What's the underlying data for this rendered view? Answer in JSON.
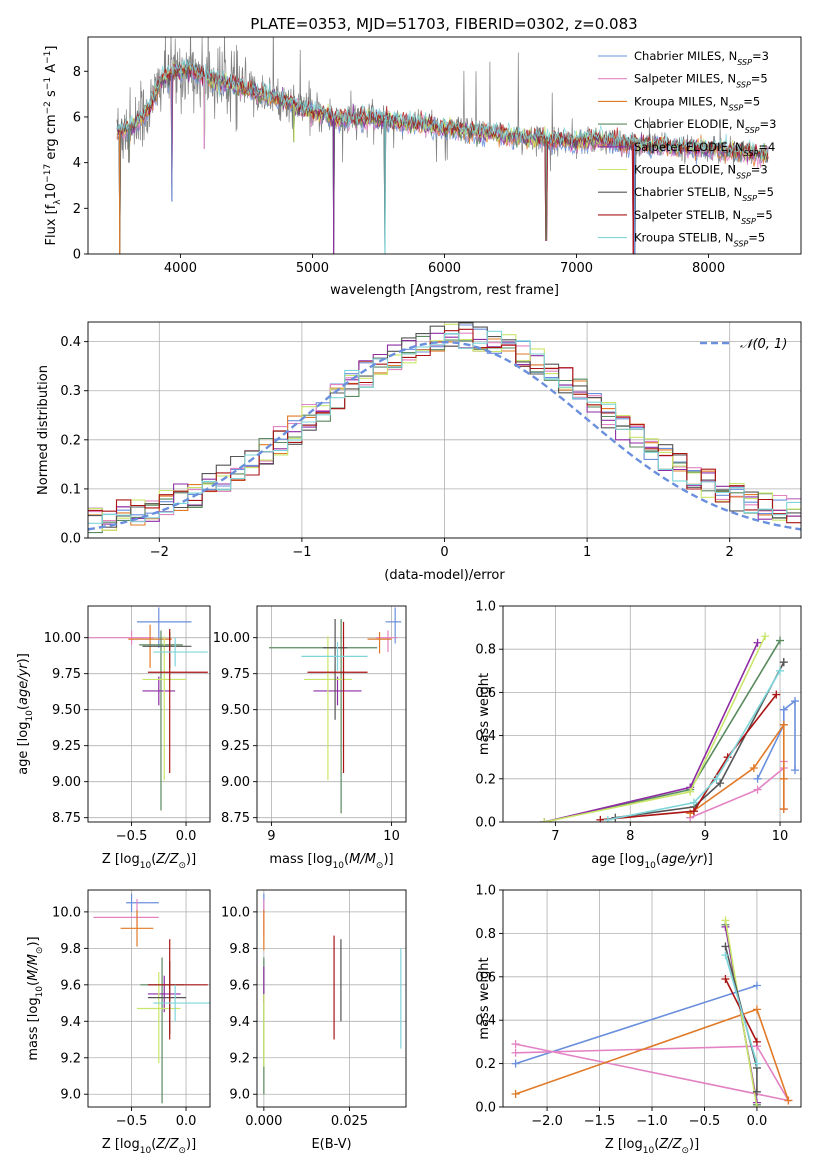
{
  "title": "PLATE=0353, MJD=51703, FIBERID=0302, z=0.083",
  "colors": {
    "Chabrier MILES": "#6a8fdc",
    "Salpeter MILES": "#e383c4",
    "Kroupa MILES": "#e07a28",
    "Chabrier ELODIE": "#5a8a5f",
    "Salpeter ELODIE": "#8e2ca4",
    "Kroupa ELODIE": "#c9e66a",
    "Chabrier STELIB": "#555555",
    "Salpeter STELIB": "#aa1414",
    "Kroupa STELIB": "#7fd6da",
    "data": "#808080"
  },
  "chart_data": [
    {
      "id": "spectrum",
      "type": "line",
      "title": "PLATE=0353, MJD=51703, FIBERID=0302, z=0.083",
      "xlabel": "wavelength [Angstrom, rest frame]",
      "ylabel": "Flux [f_λ 10^-17 erg cm^-2 s^-1 A^-1]",
      "xlim": [
        3300,
        8700
      ],
      "ylim": [
        0,
        9.5
      ],
      "xticks": [
        4000,
        5000,
        6000,
        7000,
        8000
      ],
      "yticks": [
        0,
        2,
        4,
        6,
        8
      ],
      "legend": "top-right",
      "series": [
        {
          "name": "Chabrier MILES",
          "nssp": "3"
        },
        {
          "name": "Salpeter MILES",
          "nssp": "5"
        },
        {
          "name": "Kroupa MILES",
          "nssp": "5"
        },
        {
          "name": "Chabrier ELODIE",
          "nssp": "3"
        },
        {
          "name": "Salpeter ELODIE",
          "nssp": "4"
        },
        {
          "name": "Kroupa ELODIE",
          "nssp": "3"
        },
        {
          "name": "Chabrier STELIB",
          "nssp": "5"
        },
        {
          "name": "Salpeter STELIB",
          "nssp": "5"
        },
        {
          "name": "Kroupa STELIB",
          "nssp": "5"
        }
      ],
      "continuum": [
        [
          3520,
          5.3
        ],
        [
          3650,
          5.6
        ],
        [
          3780,
          6.5
        ],
        [
          3850,
          7.6
        ],
        [
          3950,
          7.9
        ],
        [
          4050,
          8.1
        ],
        [
          4200,
          7.7
        ],
        [
          4400,
          7.4
        ],
        [
          4600,
          7.0
        ],
        [
          4800,
          6.7
        ],
        [
          5000,
          6.2
        ],
        [
          5200,
          5.9
        ],
        [
          5500,
          5.9
        ],
        [
          5800,
          5.7
        ],
        [
          6000,
          5.5
        ],
        [
          6300,
          5.3
        ],
        [
          6600,
          5.1
        ],
        [
          6800,
          5.0
        ],
        [
          7000,
          4.9
        ],
        [
          7200,
          5.0
        ],
        [
          7400,
          4.8
        ],
        [
          7700,
          4.7
        ],
        [
          8000,
          4.6
        ],
        [
          8200,
          4.5
        ],
        [
          8450,
          4.3
        ]
      ],
      "absorption_features": [
        [
          3935,
          2.3
        ],
        [
          5160,
          0.0
        ],
        [
          5550,
          0.0
        ],
        [
          6770,
          0.6
        ],
        [
          7430,
          0.0
        ],
        [
          3540,
          0.0
        ],
        [
          3610,
          4.0
        ],
        [
          4180,
          4.6
        ],
        [
          4860,
          4.9
        ],
        [
          7440,
          0.0
        ]
      ]
    },
    {
      "id": "residuals",
      "type": "histogram",
      "xlabel": "(data-model)/error",
      "ylabel": "Normed distribution",
      "xlim": [
        -2.5,
        2.5
      ],
      "ylim": [
        0,
        0.44
      ],
      "xticks": [
        -2,
        -1,
        0,
        1,
        2
      ],
      "yticks": [
        0.0,
        0.1,
        0.2,
        0.3,
        0.4
      ],
      "grid": true,
      "legend": "top-right",
      "reference": {
        "name": "𝒩(0, 1)",
        "mean": 0,
        "sigma": 1
      },
      "bin_width": 0.1
    },
    {
      "id": "age-vs-Z",
      "type": "scatter",
      "xlabel": "Z [log10(Z/Z⊙)]",
      "ylabel": "age [log10(age/yr)]",
      "xlim": [
        -0.9,
        0.22
      ],
      "ylim": [
        8.72,
        10.22
      ],
      "xticks": [
        -0.5,
        0.0
      ],
      "yticks": [
        8.75,
        9.0,
        9.25,
        9.5,
        9.75,
        10.0
      ],
      "grid": true,
      "points": [
        {
          "model": "Chabrier MILES",
          "x": -0.25,
          "y": 10.11,
          "xerr": [
            0.2,
            0.3
          ],
          "yerr": [
            0.18,
            0.1
          ]
        },
        {
          "model": "Salpeter MILES",
          "x": -0.5,
          "y": 10.0,
          "xerr": [
            0.4,
            0.2
          ],
          "yerr": [
            0.05,
            0.05
          ]
        },
        {
          "model": "Kroupa MILES",
          "x": -0.33,
          "y": 9.99,
          "xerr": [
            0.2,
            0.2
          ],
          "yerr": [
            0.2,
            0.1
          ]
        },
        {
          "model": "Chabrier ELODIE",
          "x": -0.23,
          "y": 9.95,
          "xerr": [
            0.2,
            0.2
          ],
          "yerr": [
            1.15,
            0.1
          ]
        },
        {
          "model": "Salpeter ELODIE",
          "x": -0.25,
          "y": 9.63,
          "xerr": [
            0.15,
            0.15
          ],
          "yerr": [
            0.1,
            0.1
          ]
        },
        {
          "model": "Kroupa ELODIE",
          "x": -0.2,
          "y": 9.71,
          "xerr": [
            0.2,
            0.2
          ],
          "yerr": [
            0.7,
            0.3
          ]
        },
        {
          "model": "Chabrier STELIB",
          "x": -0.15,
          "y": 9.94,
          "xerr": [
            0.25,
            0.2
          ],
          "yerr": [
            0.15,
            0.1
          ]
        },
        {
          "model": "Salpeter STELIB",
          "x": -0.15,
          "y": 9.76,
          "xerr": [
            0.2,
            0.35
          ],
          "yerr": [
            0.7,
            0.3
          ]
        },
        {
          "model": "Kroupa STELIB",
          "x": -0.1,
          "y": 9.9,
          "xerr": [
            0.2,
            0.3
          ],
          "yerr": [
            0.1,
            0.1
          ]
        }
      ]
    },
    {
      "id": "age-vs-mass",
      "type": "scatter",
      "xlabel": "mass [log10(M/M⊙)]",
      "ylabel": "",
      "xlim": [
        8.88,
        10.12
      ],
      "ylim": [
        8.72,
        10.22
      ],
      "xticks": [
        9,
        10
      ],
      "yticks": [
        8.75,
        9.0,
        9.25,
        9.5,
        9.75,
        10.0
      ],
      "grid": true,
      "points": [
        {
          "model": "Chabrier MILES",
          "x": 10.03,
          "y": 10.11,
          "xerr": [
            0.08,
            0.05
          ],
          "yerr": [
            0.15,
            0.1
          ]
        },
        {
          "model": "Salpeter MILES",
          "x": 9.97,
          "y": 10.0,
          "xerr": [
            0.1,
            0.08
          ],
          "yerr": [
            0.1,
            0.05
          ]
        },
        {
          "model": "Kroupa MILES",
          "x": 9.9,
          "y": 9.99,
          "xerr": [
            0.1,
            0.1
          ],
          "yerr": [
            0.1,
            0.05
          ]
        },
        {
          "model": "Chabrier ELODIE",
          "x": 9.58,
          "y": 9.93,
          "xerr": [
            0.6,
            0.3
          ],
          "yerr": [
            1.15,
            0.2
          ]
        },
        {
          "model": "Salpeter ELODIE",
          "x": 9.55,
          "y": 9.63,
          "xerr": [
            0.2,
            0.2
          ],
          "yerr": [
            0.1,
            0.1
          ]
        },
        {
          "model": "Kroupa ELODIE",
          "x": 9.47,
          "y": 9.71,
          "xerr": [
            0.2,
            0.2
          ],
          "yerr": [
            0.7,
            0.3
          ]
        },
        {
          "model": "Chabrier STELIB",
          "x": 9.53,
          "y": 9.93,
          "xerr": [
            0.1,
            0.1
          ],
          "yerr": [
            0.5,
            0.2
          ]
        },
        {
          "model": "Salpeter STELIB",
          "x": 9.6,
          "y": 9.76,
          "xerr": [
            0.3,
            0.2
          ],
          "yerr": [
            0.7,
            0.35
          ]
        },
        {
          "model": "Kroupa STELIB",
          "x": 9.55,
          "y": 9.87,
          "xerr": [
            0.3,
            0.25
          ],
          "yerr": [
            0.1,
            0.1
          ]
        }
      ]
    },
    {
      "id": "weight-vs-age",
      "type": "line",
      "xlabel": "age [log10(age/yr)]",
      "ylabel": "mass weight",
      "xlim": [
        6.3,
        10.28
      ],
      "ylim": [
        0,
        1.0
      ],
      "xticks": [
        7,
        8,
        9,
        10
      ],
      "yticks": [
        0.0,
        0.2,
        0.4,
        0.6,
        0.8,
        1.0
      ],
      "grid": true,
      "series": [
        {
          "name": "Chabrier MILES",
          "x": [
            9.7,
            10.05,
            10.05,
            10.2,
            10.2
          ],
          "y": [
            0.2,
            0.45,
            0.52,
            0.56,
            0.24
          ]
        },
        {
          "name": "Salpeter MILES",
          "x": [
            8.8,
            9.7,
            10.05,
            10.05,
            10.05
          ],
          "y": [
            0.02,
            0.15,
            0.25,
            0.28,
            0.06
          ]
        },
        {
          "name": "Kroupa MILES",
          "x": [
            8.8,
            9.65,
            10.05,
            10.05,
            10.05
          ],
          "y": [
            0.04,
            0.25,
            0.45,
            0.2,
            0.06
          ]
        },
        {
          "name": "Chabrier ELODIE",
          "x": [
            6.85,
            8.8,
            10.0
          ],
          "y": [
            0.0,
            0.15,
            0.84
          ]
        },
        {
          "name": "Salpeter ELODIE",
          "x": [
            6.85,
            8.8,
            9.7
          ],
          "y": [
            0.0,
            0.16,
            0.83
          ]
        },
        {
          "name": "Kroupa ELODIE",
          "x": [
            6.85,
            8.8,
            9.8
          ],
          "y": [
            0.0,
            0.14,
            0.86
          ]
        },
        {
          "name": "Chabrier STELIB",
          "x": [
            7.8,
            8.85,
            9.2,
            10.05,
            10.05
          ],
          "y": [
            0.02,
            0.07,
            0.18,
            0.74,
            0.74
          ]
        },
        {
          "name": "Salpeter STELIB",
          "x": [
            7.6,
            8.85,
            9.3,
            9.95
          ],
          "y": [
            0.01,
            0.05,
            0.3,
            0.59
          ]
        },
        {
          "name": "Kroupa STELIB",
          "x": [
            7.7,
            8.85,
            9.15,
            10.0
          ],
          "y": [
            0.01,
            0.09,
            0.2,
            0.7
          ]
        }
      ]
    },
    {
      "id": "mass-vs-Z",
      "type": "scatter",
      "xlabel": "Z [log10(Z/Z⊙)]",
      "ylabel": "mass [log10(M/M⊙)]",
      "xlim": [
        -0.9,
        0.22
      ],
      "ylim": [
        8.93,
        10.12
      ],
      "xticks": [
        -0.5,
        0.0
      ],
      "yticks": [
        9.0,
        9.2,
        9.4,
        9.6,
        9.8,
        10.0
      ],
      "grid": true,
      "points": [
        {
          "model": "Chabrier MILES",
          "x": -0.5,
          "y": 10.05,
          "xerr": [
            0.05,
            0.25
          ],
          "yerr": [
            0.05,
            0.05
          ]
        },
        {
          "model": "Salpeter MILES",
          "x": -0.45,
          "y": 9.97,
          "xerr": [
            0.4,
            0.2
          ],
          "yerr": [
            0.05,
            0.1
          ]
        },
        {
          "model": "Kroupa MILES",
          "x": -0.45,
          "y": 9.91,
          "xerr": [
            0.15,
            0.15
          ],
          "yerr": [
            0.1,
            0.1
          ]
        },
        {
          "model": "Chabrier ELODIE",
          "x": -0.22,
          "y": 9.6,
          "xerr": [
            0.2,
            0.2
          ],
          "yerr": [
            0.65,
            0.15
          ]
        },
        {
          "model": "Salpeter ELODIE",
          "x": -0.2,
          "y": 9.55,
          "xerr": [
            0.15,
            0.15
          ],
          "yerr": [
            0.1,
            0.1
          ]
        },
        {
          "model": "Kroupa ELODIE",
          "x": -0.25,
          "y": 9.47,
          "xerr": [
            0.2,
            0.2
          ],
          "yerr": [
            0.3,
            0.2
          ]
        },
        {
          "model": "Chabrier STELIB",
          "x": -0.15,
          "y": 9.53,
          "xerr": [
            0.2,
            0.15
          ],
          "yerr": [
            0.2,
            0.2
          ]
        },
        {
          "model": "Salpeter STELIB",
          "x": -0.15,
          "y": 9.6,
          "xerr": [
            0.2,
            0.35
          ],
          "yerr": [
            0.3,
            0.25
          ]
        },
        {
          "model": "Kroupa STELIB",
          "x": -0.1,
          "y": 9.5,
          "xerr": [
            0.2,
            0.35
          ],
          "yerr": [
            0.1,
            0.1
          ]
        }
      ]
    },
    {
      "id": "mass-vs-ebv",
      "type": "scatter",
      "xlabel": "E(B-V)",
      "ylabel": "",
      "xlim": [
        -0.002,
        0.0415
      ],
      "ylim": [
        8.93,
        10.12
      ],
      "xticks": [
        0.0,
        0.025
      ],
      "yticks": [
        9.0,
        9.2,
        9.4,
        9.6,
        9.8,
        10.0
      ],
      "grid": true,
      "points": [
        {
          "model": "Chabrier MILES",
          "x": 0.0,
          "y": 10.05,
          "yerr": [
            0.05,
            0.05
          ]
        },
        {
          "model": "Salpeter MILES",
          "x": 0.0,
          "y": 9.97,
          "yerr": [
            0.1,
            0.1
          ]
        },
        {
          "model": "Kroupa MILES",
          "x": 0.0,
          "y": 9.91,
          "yerr": [
            0.12,
            0.1
          ]
        },
        {
          "model": "Chabrier ELODIE",
          "x": 0.0,
          "y": 9.6,
          "yerr": [
            0.6,
            0.15
          ]
        },
        {
          "model": "Salpeter ELODIE",
          "x": 0.0,
          "y": 9.6,
          "yerr": [
            0.1,
            0.1
          ]
        },
        {
          "model": "Kroupa ELODIE",
          "x": 0.0,
          "y": 9.45,
          "yerr": [
            0.3,
            0.1
          ]
        },
        {
          "model": "Chabrier STELIB",
          "x": 0.0225,
          "y": 9.6,
          "yerr": [
            0.2,
            0.25
          ]
        },
        {
          "model": "Salpeter STELIB",
          "x": 0.0205,
          "y": 9.6,
          "yerr": [
            0.3,
            0.27
          ]
        },
        {
          "model": "Kroupa STELIB",
          "x": 0.04,
          "y": 9.5,
          "yerr": [
            0.25,
            0.3
          ]
        }
      ]
    },
    {
      "id": "weight-vs-Z",
      "type": "line",
      "xlabel": "Z [log10(Z/Z⊙)]",
      "ylabel": "mass weight",
      "xlim": [
        -2.42,
        0.42
      ],
      "ylim": [
        0,
        1.0
      ],
      "xticks": [
        -2.0,
        -1.5,
        -1.0,
        -0.5,
        0.0
      ],
      "yticks": [
        0.0,
        0.2,
        0.4,
        0.6,
        0.8,
        1.0
      ],
      "grid": true,
      "series": [
        {
          "name": "Chabrier MILES",
          "x": [
            -2.3,
            0.0
          ],
          "y": [
            0.2,
            0.56
          ]
        },
        {
          "name": "Salpeter MILES",
          "x": [
            -2.3,
            0.0,
            0.3,
            -2.3
          ],
          "y": [
            0.25,
            0.28,
            0.03,
            0.29
          ]
        },
        {
          "name": "Kroupa MILES",
          "x": [
            -2.3,
            0.0,
            0.3
          ],
          "y": [
            0.06,
            0.45,
            0.03
          ]
        },
        {
          "name": "Chabrier ELODIE",
          "x": [
            -0.3,
            0.0
          ],
          "y": [
            0.84,
            0.01
          ]
        },
        {
          "name": "Salpeter ELODIE",
          "x": [
            -0.3,
            0.0
          ],
          "y": [
            0.83,
            0.02
          ]
        },
        {
          "name": "Kroupa ELODIE",
          "x": [
            -0.3,
            0.0
          ],
          "y": [
            0.86,
            0.0
          ]
        },
        {
          "name": "Chabrier STELIB",
          "x": [
            -0.3,
            0.0,
            0.0
          ],
          "y": [
            0.74,
            0.18,
            0.07
          ]
        },
        {
          "name": "Salpeter STELIB",
          "x": [
            -0.3,
            0.0
          ],
          "y": [
            0.59,
            0.3
          ]
        },
        {
          "name": "Kroupa STELIB",
          "x": [
            -0.3,
            0.0
          ],
          "y": [
            0.7,
            0.2
          ]
        }
      ]
    }
  ]
}
